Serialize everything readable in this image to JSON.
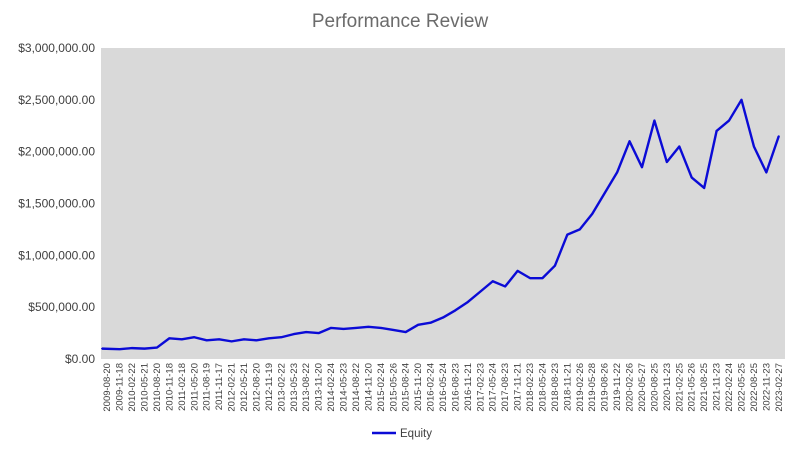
{
  "chart_data": {
    "type": "line",
    "title": "Performance Review",
    "xlabel": "",
    "ylabel": "",
    "ylim": [
      0,
      3000000
    ],
    "y_ticks": [
      0,
      500000,
      1000000,
      1500000,
      2000000,
      2500000,
      3000000
    ],
    "y_tick_labels": [
      "$0.00",
      "$500,000.00",
      "$1,000,000.00",
      "$1,500,000.00",
      "$2,000,000.00",
      "$2,500,000.00",
      "$3,000,000.00"
    ],
    "x_tick_labels": [
      "2009-08-20",
      "2009-11-18",
      "2010-02-22",
      "2010-05-21",
      "2010-08-20",
      "2010-11-18",
      "2011-02-18",
      "2011-05-20",
      "2011-08-19",
      "2011-11-17",
      "2012-02-21",
      "2012-05-21",
      "2012-08-20",
      "2012-11-19",
      "2013-02-22",
      "2013-05-23",
      "2013-08-22",
      "2013-11-20",
      "2014-02-24",
      "2014-05-23",
      "2014-08-22",
      "2014-11-20",
      "2015-02-24",
      "2015-05-26",
      "2015-08-24",
      "2015-11-20",
      "2016-02-24",
      "2016-05-24",
      "2016-08-23",
      "2016-11-21",
      "2017-02-23",
      "2017-05-24",
      "2017-08-23",
      "2017-11-21",
      "2018-02-23",
      "2018-05-24",
      "2018-08-23",
      "2018-11-21",
      "2019-02-26",
      "2019-05-28",
      "2019-08-26",
      "2019-11-22",
      "2020-02-26",
      "2020-05-27",
      "2020-08-25",
      "2020-11-23",
      "2021-02-25",
      "2021-05-26",
      "2021-08-25",
      "2021-11-23",
      "2022-02-24",
      "2022-05-25",
      "2022-08-25",
      "2022-11-23",
      "2023-02-27"
    ],
    "legend": "bottom",
    "grid": false,
    "colors": {
      "plot_bg": "#d9d9d9",
      "line": "#0b0bd6"
    },
    "series": [
      {
        "name": "Equity",
        "x": [
          "2009-08-20",
          "2009-11-18",
          "2010-02-22",
          "2010-05-21",
          "2010-08-20",
          "2010-11-18",
          "2011-02-18",
          "2011-05-20",
          "2011-08-19",
          "2011-11-17",
          "2012-02-21",
          "2012-05-21",
          "2012-08-20",
          "2012-11-19",
          "2013-02-22",
          "2013-05-23",
          "2013-08-22",
          "2013-11-20",
          "2014-02-24",
          "2014-05-23",
          "2014-08-22",
          "2014-11-20",
          "2015-02-24",
          "2015-05-26",
          "2015-08-24",
          "2015-11-20",
          "2016-02-24",
          "2016-05-24",
          "2016-08-23",
          "2016-11-21",
          "2017-02-23",
          "2017-05-24",
          "2017-08-23",
          "2017-11-21",
          "2018-02-23",
          "2018-05-24",
          "2018-08-23",
          "2018-11-21",
          "2019-02-26",
          "2019-05-28",
          "2019-08-26",
          "2019-11-22",
          "2020-02-26",
          "2020-05-27",
          "2020-08-25",
          "2020-11-23",
          "2021-02-25",
          "2021-05-26",
          "2021-08-25",
          "2021-11-23",
          "2022-02-24",
          "2022-05-25",
          "2022-08-25",
          "2022-11-23",
          "2023-02-27"
        ],
        "values": [
          100000,
          95000,
          105000,
          100000,
          110000,
          200000,
          190000,
          210000,
          180000,
          190000,
          170000,
          190000,
          180000,
          200000,
          210000,
          240000,
          260000,
          250000,
          300000,
          290000,
          300000,
          310000,
          300000,
          280000,
          260000,
          330000,
          350000,
          400000,
          470000,
          550000,
          650000,
          750000,
          700000,
          850000,
          780000,
          780000,
          900000,
          1200000,
          1250000,
          1400000,
          1600000,
          1800000,
          2100000,
          1850000,
          2300000,
          1900000,
          2050000,
          1750000,
          1650000,
          2200000,
          2300000,
          2500000,
          2050000,
          1800000,
          2150000
        ]
      }
    ]
  }
}
